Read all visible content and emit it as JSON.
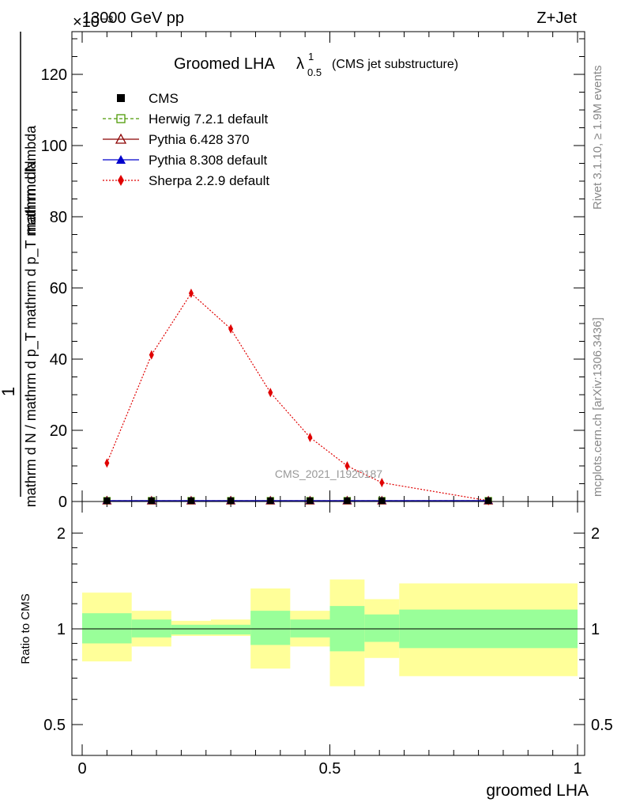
{
  "header": {
    "left_label": "13000 GeV pp",
    "right_label": "Z+Jet",
    "exponent_label": "×10⁻³"
  },
  "side_texts": {
    "rivet": "Rivet 3.1.10, ≥ 1.9M events",
    "mcplots": "mcplots.cern.ch [arXiv:1306.3436]"
  },
  "chart_data": [
    {
      "type": "line",
      "title": {
        "main": "Groomed LHA",
        "lambda": "λ",
        "lambda_sup": "1",
        "lambda_sub": "0.5",
        "suffix": "(CMS jet substructure)"
      },
      "ylabel": {
        "numerator": "1 mathrm dN",
        "denominator": "mathrm d N / mathrm d p_T mathrm d p_T mathrm d lambda"
      },
      "yscale_note": "values in units of 10^-3",
      "ylim": [
        0,
        132
      ],
      "yticks": [
        "0",
        "20",
        "40",
        "60",
        "80",
        "100",
        "120"
      ],
      "xlim": [
        0,
        1
      ],
      "analysis_label": "CMS_2021_I1920187",
      "legend_position": "top-left",
      "series": [
        {
          "name": "CMS",
          "marker": "filled-square",
          "color": "#000000",
          "line": "none",
          "x": [
            0.05,
            0.14,
            0.22,
            0.3,
            0.38,
            0.46,
            0.535,
            0.605,
            0.82
          ],
          "y": [
            0.05,
            0.05,
            0.05,
            0.05,
            0.05,
            0.05,
            0.05,
            0.05,
            0.05
          ]
        },
        {
          "name": "Herwig 7.2.1 default",
          "marker": "open-square",
          "color": "#4e9a06",
          "line": "dashed",
          "x": [
            0.05,
            0.14,
            0.22,
            0.3,
            0.38,
            0.46,
            0.535,
            0.605,
            0.82
          ],
          "y": [
            0.05,
            0.05,
            0.05,
            0.05,
            0.05,
            0.05,
            0.05,
            0.05,
            0.05
          ]
        },
        {
          "name": "Pythia 6.428 370",
          "marker": "open-triangle",
          "color": "#8b0000",
          "line": "solid",
          "x": [
            0.05,
            0.14,
            0.22,
            0.3,
            0.38,
            0.46,
            0.535,
            0.605,
            0.82
          ],
          "y": [
            0.05,
            0.05,
            0.05,
            0.05,
            0.05,
            0.05,
            0.05,
            0.05,
            0.05
          ]
        },
        {
          "name": "Pythia 8.308 default",
          "marker": "filled-triangle",
          "color": "#0000cc",
          "line": "solid",
          "x": [
            0.05,
            0.14,
            0.22,
            0.3,
            0.38,
            0.46,
            0.535,
            0.605,
            0.82
          ],
          "y": [
            0.05,
            0.05,
            0.05,
            0.05,
            0.05,
            0.05,
            0.05,
            0.05,
            0.05
          ]
        },
        {
          "name": "Sherpa 2.2.9 default",
          "marker": "filled-diamond",
          "color": "#e00000",
          "line": "dotted",
          "x": [
            0.05,
            0.14,
            0.22,
            0.3,
            0.38,
            0.46,
            0.535,
            0.605,
            0.82
          ],
          "y": [
            10.8,
            41.2,
            58.5,
            48.5,
            30.6,
            18.0,
            10.0,
            5.3,
            0.2
          ]
        }
      ]
    },
    {
      "type": "area",
      "ylabel": "Ratio to CMS",
      "xlabel": "groomed LHA",
      "yscale": "log",
      "ylim": [
        0.4,
        2.4
      ],
      "yticks": [
        "0.5",
        "1",
        "2"
      ],
      "xticks": [
        "0",
        "0.5",
        "1"
      ],
      "xlim": [
        0,
        1
      ],
      "reference": 1,
      "band_colors": {
        "inner": "#99ff99",
        "outer": "#ffff99"
      },
      "bins": [
        {
          "x0": 0.0,
          "x1": 0.1,
          "inner": [
            0.9,
            1.12
          ],
          "outer": [
            0.79,
            1.3
          ]
        },
        {
          "x0": 0.1,
          "x1": 0.18,
          "inner": [
            0.94,
            1.07
          ],
          "outer": [
            0.88,
            1.14
          ]
        },
        {
          "x0": 0.18,
          "x1": 0.26,
          "inner": [
            0.96,
            1.03
          ],
          "outer": [
            0.95,
            1.06
          ]
        },
        {
          "x0": 0.26,
          "x1": 0.34,
          "inner": [
            0.96,
            1.03
          ],
          "outer": [
            0.95,
            1.07
          ]
        },
        {
          "x0": 0.34,
          "x1": 0.42,
          "inner": [
            0.89,
            1.14
          ],
          "outer": [
            0.75,
            1.34
          ]
        },
        {
          "x0": 0.42,
          "x1": 0.5,
          "inner": [
            0.94,
            1.07
          ],
          "outer": [
            0.88,
            1.14
          ]
        },
        {
          "x0": 0.5,
          "x1": 0.57,
          "inner": [
            0.85,
            1.18
          ],
          "outer": [
            0.66,
            1.43
          ]
        },
        {
          "x0": 0.57,
          "x1": 0.64,
          "inner": [
            0.91,
            1.11
          ],
          "outer": [
            0.81,
            1.24
          ]
        },
        {
          "x0": 0.64,
          "x1": 1.0,
          "inner": [
            0.87,
            1.15
          ],
          "outer": [
            0.71,
            1.39
          ]
        }
      ]
    }
  ]
}
